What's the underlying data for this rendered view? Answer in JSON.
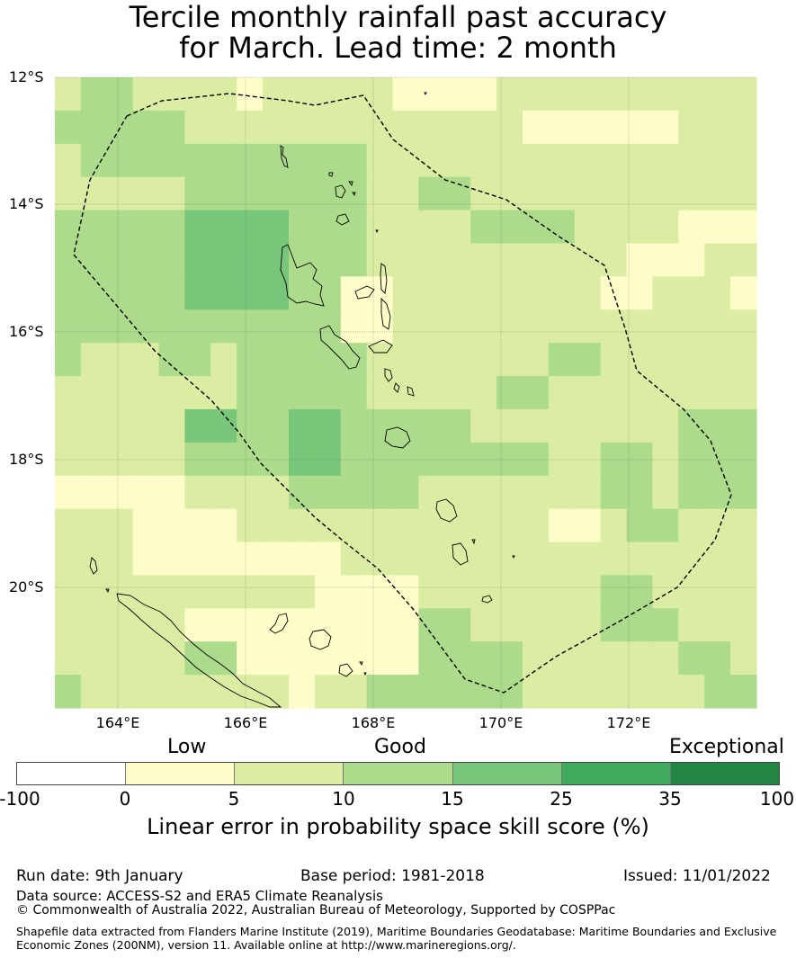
{
  "title": {
    "line1": "Tercile monthly rainfall past accuracy",
    "line2": "for March. Lead time: 2 month"
  },
  "map": {
    "lat_labels": [
      "12°S",
      "14°S",
      "16°S",
      "18°S",
      "20°S"
    ],
    "lon_labels": [
      "164°E",
      "166°E",
      "168°E",
      "170°E",
      "172°E"
    ]
  },
  "legend": {
    "categories": [
      "Low",
      "Good",
      "Exceptional"
    ],
    "ticks": [
      "-100",
      "0",
      "5",
      "10",
      "15",
      "25",
      "35",
      "100"
    ],
    "colors": [
      "#ffffff",
      "#fefdca",
      "#daeda2",
      "#acdb8b",
      "#78c679",
      "#41ab5d",
      "#238443"
    ],
    "title": "Linear error in probability space skill score (%)"
  },
  "footer": {
    "run_date": "Run date: 9th January",
    "base_period": "Base period: 1981-2018",
    "issued": "Issued: 11/01/2022",
    "data_source": "Data source: ACCESS-S2 and ERA5 Climate Reanalysis",
    "copyright": "© Commonwealth of Australia 2022, Australian Bureau of Meteorology, Supported by COSPPac",
    "shapefile_line1": "Shapefile data extracted from Flanders Marine Institute (2019), Maritime Boundaries Geodatabase: Maritime Boundaries and Exclusive",
    "shapefile_line2": "Economic Zones (200NM), version 11. Available online at http://www.marineregions.org/."
  },
  "grid": [
    [
      2,
      3,
      3,
      2,
      2,
      2,
      2,
      1,
      2,
      2,
      2,
      2,
      2,
      1,
      1,
      1,
      1,
      2,
      2,
      2,
      2,
      2,
      2,
      2,
      2,
      2,
      2
    ],
    [
      3,
      3,
      3,
      3,
      3,
      2,
      2,
      2,
      2,
      2,
      2,
      2,
      2,
      2,
      2,
      2,
      2,
      2,
      1,
      1,
      1,
      1,
      1,
      1,
      2,
      2,
      2
    ],
    [
      2,
      3,
      3,
      3,
      3,
      3,
      3,
      3,
      3,
      3,
      3,
      3,
      2,
      2,
      2,
      2,
      2,
      2,
      2,
      2,
      2,
      2,
      2,
      2,
      2,
      2,
      2
    ],
    [
      2,
      2,
      2,
      2,
      2,
      3,
      3,
      3,
      3,
      3,
      3,
      3,
      2,
      2,
      3,
      3,
      2,
      2,
      2,
      2,
      2,
      2,
      2,
      2,
      2,
      2,
      2
    ],
    [
      3,
      3,
      3,
      3,
      3,
      4,
      4,
      4,
      4,
      3,
      3,
      3,
      2,
      2,
      2,
      2,
      3,
      3,
      3,
      3,
      2,
      2,
      2,
      2,
      1,
      1,
      1
    ],
    [
      3,
      3,
      3,
      3,
      3,
      4,
      4,
      4,
      4,
      3,
      3,
      3,
      2,
      2,
      2,
      2,
      2,
      2,
      2,
      2,
      2,
      2,
      1,
      1,
      1,
      2,
      2
    ],
    [
      3,
      3,
      3,
      3,
      3,
      4,
      4,
      4,
      4,
      3,
      3,
      1,
      1,
      2,
      2,
      2,
      2,
      2,
      2,
      2,
      2,
      1,
      1,
      2,
      2,
      2,
      1
    ],
    [
      3,
      3,
      3,
      3,
      3,
      3,
      3,
      3,
      3,
      3,
      3,
      1,
      1,
      2,
      2,
      2,
      2,
      2,
      2,
      2,
      2,
      2,
      2,
      2,
      2,
      2,
      2
    ],
    [
      3,
      2,
      2,
      2,
      3,
      3,
      2,
      3,
      3,
      3,
      3,
      3,
      2,
      2,
      2,
      2,
      2,
      2,
      2,
      3,
      3,
      2,
      2,
      2,
      2,
      2,
      2
    ],
    [
      2,
      2,
      2,
      2,
      2,
      2,
      2,
      3,
      3,
      3,
      3,
      3,
      2,
      2,
      2,
      2,
      2,
      3,
      3,
      2,
      2,
      2,
      2,
      2,
      2,
      2,
      2
    ],
    [
      2,
      2,
      2,
      2,
      2,
      4,
      4,
      3,
      3,
      4,
      4,
      3,
      3,
      3,
      3,
      3,
      2,
      2,
      2,
      2,
      2,
      2,
      2,
      2,
      3,
      3,
      3
    ],
    [
      2,
      2,
      2,
      2,
      2,
      3,
      3,
      3,
      3,
      4,
      4,
      3,
      3,
      3,
      3,
      3,
      3,
      3,
      3,
      2,
      2,
      3,
      3,
      2,
      3,
      3,
      3
    ],
    [
      1,
      1,
      1,
      1,
      1,
      2,
      2,
      2,
      2,
      3,
      3,
      3,
      3,
      3,
      2,
      2,
      2,
      2,
      2,
      2,
      2,
      3,
      3,
      2,
      3,
      3,
      3
    ],
    [
      2,
      2,
      2,
      1,
      1,
      1,
      1,
      2,
      2,
      2,
      2,
      2,
      2,
      2,
      2,
      2,
      2,
      2,
      2,
      1,
      1,
      2,
      3,
      3,
      2,
      2,
      2
    ],
    [
      2,
      2,
      2,
      1,
      1,
      1,
      1,
      1,
      1,
      1,
      1,
      2,
      2,
      2,
      2,
      2,
      2,
      2,
      2,
      2,
      2,
      2,
      2,
      2,
      2,
      2,
      2
    ],
    [
      2,
      2,
      2,
      2,
      2,
      2,
      2,
      2,
      2,
      2,
      1,
      1,
      1,
      1,
      2,
      2,
      2,
      2,
      2,
      2,
      2,
      3,
      3,
      2,
      2,
      2,
      2
    ],
    [
      2,
      2,
      2,
      2,
      2,
      1,
      1,
      1,
      1,
      1,
      1,
      1,
      1,
      1,
      3,
      3,
      2,
      2,
      2,
      2,
      2,
      3,
      3,
      3,
      2,
      2,
      2
    ],
    [
      2,
      2,
      2,
      2,
      2,
      3,
      3,
      1,
      1,
      1,
      1,
      1,
      1,
      1,
      3,
      3,
      3,
      3,
      2,
      2,
      2,
      2,
      2,
      2,
      3,
      3,
      2
    ],
    [
      3,
      2,
      2,
      2,
      2,
      2,
      2,
      2,
      2,
      1,
      2,
      2,
      3,
      3,
      3,
      3,
      3,
      3,
      2,
      2,
      2,
      2,
      2,
      2,
      2,
      3,
      3
    ]
  ]
}
